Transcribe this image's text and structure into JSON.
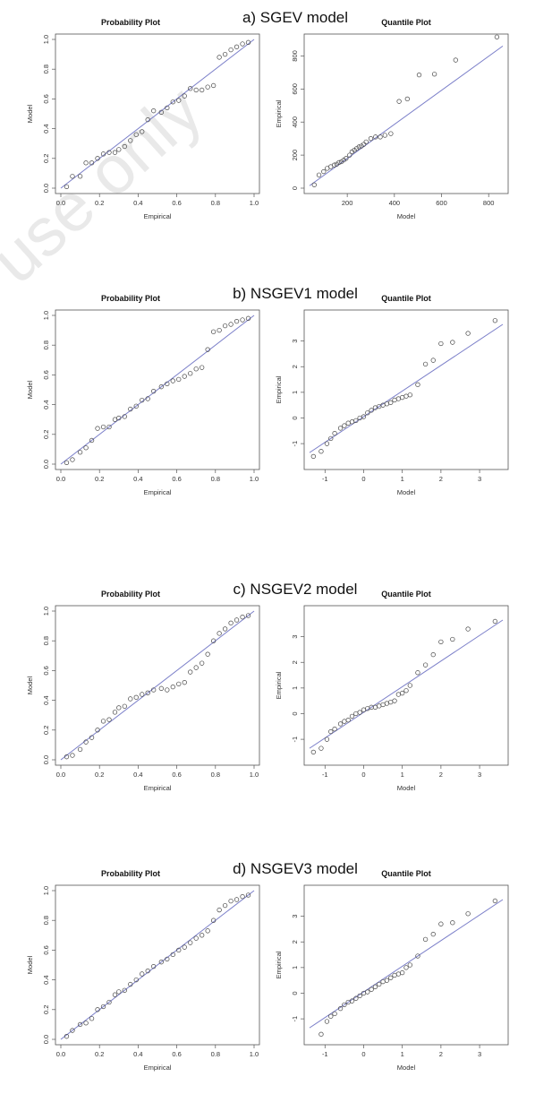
{
  "watermark": "use only",
  "colors": {
    "reference_line": "#7b7fc9",
    "points": "#444444",
    "frame": "#555555"
  },
  "chart_data": [
    {
      "section_title": "a) SGEV model",
      "type": "scatter",
      "title": "Probability Plot",
      "xlabel": "Empirical",
      "ylabel": "Model",
      "xlim": [
        0,
        1
      ],
      "ylim": [
        0,
        1
      ],
      "xticks": [
        "0.0",
        "0.2",
        "0.4",
        "0.6",
        "0.8",
        "1.0"
      ],
      "yticks": [
        "0.0",
        "0.2",
        "0.4",
        "0.6",
        "0.8",
        "1.0"
      ],
      "reference_line": [
        [
          0,
          0
        ],
        [
          1,
          1
        ]
      ],
      "x": [
        0.03,
        0.06,
        0.1,
        0.13,
        0.16,
        0.19,
        0.22,
        0.25,
        0.28,
        0.3,
        0.33,
        0.36,
        0.39,
        0.42,
        0.45,
        0.48,
        0.52,
        0.55,
        0.58,
        0.61,
        0.64,
        0.67,
        0.7,
        0.73,
        0.76,
        0.79,
        0.82,
        0.85,
        0.88,
        0.91,
        0.94,
        0.97
      ],
      "y": [
        0.01,
        0.08,
        0.08,
        0.17,
        0.17,
        0.2,
        0.23,
        0.24,
        0.24,
        0.26,
        0.28,
        0.32,
        0.36,
        0.38,
        0.46,
        0.52,
        0.51,
        0.54,
        0.58,
        0.59,
        0.62,
        0.67,
        0.66,
        0.66,
        0.68,
        0.69,
        0.88,
        0.9,
        0.93,
        0.95,
        0.97,
        0.98
      ]
    },
    {
      "section_title": "",
      "type": "scatter",
      "title": "Quantile Plot",
      "xlabel": "Model",
      "ylabel": "Empirical",
      "xlim": [
        40,
        860
      ],
      "ylim": [
        0,
        900
      ],
      "xticks": [
        "200",
        "400",
        "600",
        "800"
      ],
      "yticks": [
        "0",
        "200",
        "400",
        "600",
        "800"
      ],
      "reference_line": [
        [
          40,
          15
        ],
        [
          860,
          860
        ]
      ],
      "x": [
        60,
        80,
        100,
        115,
        130,
        145,
        155,
        165,
        175,
        185,
        195,
        210,
        220,
        230,
        240,
        250,
        260,
        270,
        280,
        300,
        320,
        340,
        360,
        385,
        420,
        455,
        505,
        570,
        660,
        835
      ],
      "y": [
        20,
        80,
        100,
        120,
        130,
        140,
        145,
        155,
        160,
        170,
        180,
        200,
        220,
        230,
        240,
        250,
        255,
        265,
        280,
        300,
        310,
        310,
        320,
        330,
        525,
        540,
        685,
        690,
        775,
        915
      ]
    },
    {
      "section_title": "b) NSGEV1 model",
      "type": "scatter",
      "title": "Probability Plot",
      "xlabel": "Empirical",
      "ylabel": "Model",
      "xlim": [
        0,
        1
      ],
      "ylim": [
        0,
        1
      ],
      "xticks": [
        "0.0",
        "0.2",
        "0.4",
        "0.6",
        "0.8",
        "1.0"
      ],
      "yticks": [
        "0.0",
        "0.2",
        "0.4",
        "0.6",
        "0.8",
        "1.0"
      ],
      "reference_line": [
        [
          0,
          0
        ],
        [
          1,
          1
        ]
      ],
      "x": [
        0.03,
        0.06,
        0.1,
        0.13,
        0.16,
        0.19,
        0.22,
        0.25,
        0.28,
        0.3,
        0.33,
        0.36,
        0.39,
        0.42,
        0.45,
        0.48,
        0.52,
        0.55,
        0.58,
        0.61,
        0.64,
        0.67,
        0.7,
        0.73,
        0.76,
        0.79,
        0.82,
        0.85,
        0.88,
        0.91,
        0.94,
        0.97
      ],
      "y": [
        0.01,
        0.03,
        0.08,
        0.11,
        0.16,
        0.24,
        0.25,
        0.25,
        0.3,
        0.31,
        0.32,
        0.37,
        0.39,
        0.43,
        0.44,
        0.49,
        0.52,
        0.54,
        0.56,
        0.57,
        0.59,
        0.61,
        0.64,
        0.65,
        0.77,
        0.89,
        0.9,
        0.93,
        0.94,
        0.96,
        0.97,
        0.98
      ]
    },
    {
      "section_title": "",
      "type": "scatter",
      "title": "Quantile Plot",
      "xlabel": "Model",
      "ylabel": "Empirical",
      "xlim": [
        -1.4,
        3.6
      ],
      "ylim": [
        -1.8,
        4.0
      ],
      "xticks": [
        "-1",
        "0",
        "1",
        "2",
        "3"
      ],
      "yticks": [
        "-1",
        "0",
        "1",
        "2",
        "3"
      ],
      "reference_line": [
        [
          -1.4,
          -1.35
        ],
        [
          3.6,
          3.65
        ]
      ],
      "x": [
        -1.3,
        -1.1,
        -0.95,
        -0.85,
        -0.75,
        -0.6,
        -0.5,
        -0.4,
        -0.3,
        -0.2,
        -0.1,
        0.0,
        0.1,
        0.2,
        0.3,
        0.4,
        0.5,
        0.6,
        0.7,
        0.8,
        0.9,
        1.0,
        1.1,
        1.2,
        1.4,
        1.6,
        1.8,
        2.0,
        2.3,
        2.7,
        3.4
      ],
      "y": [
        -1.5,
        -1.3,
        -1.0,
        -0.8,
        -0.6,
        -0.4,
        -0.3,
        -0.2,
        -0.15,
        -0.1,
        0.0,
        0.05,
        0.2,
        0.3,
        0.4,
        0.45,
        0.5,
        0.55,
        0.6,
        0.7,
        0.75,
        0.8,
        0.85,
        0.9,
        1.3,
        2.1,
        2.25,
        2.9,
        2.95,
        3.3,
        3.8
      ]
    },
    {
      "section_title": "c) NSGEV2 model",
      "type": "scatter",
      "title": "Probability Plot",
      "xlabel": "Empirical",
      "ylabel": "Model",
      "xlim": [
        0,
        1
      ],
      "ylim": [
        0,
        1
      ],
      "xticks": [
        "0.0",
        "0.2",
        "0.4",
        "0.6",
        "0.8",
        "1.0"
      ],
      "yticks": [
        "0.0",
        "0.2",
        "0.4",
        "0.6",
        "0.8",
        "1.0"
      ],
      "reference_line": [
        [
          0,
          0
        ],
        [
          1,
          1
        ]
      ],
      "x": [
        0.03,
        0.06,
        0.1,
        0.13,
        0.16,
        0.19,
        0.22,
        0.25,
        0.28,
        0.3,
        0.33,
        0.36,
        0.39,
        0.42,
        0.45,
        0.48,
        0.52,
        0.55,
        0.58,
        0.61,
        0.64,
        0.67,
        0.7,
        0.73,
        0.76,
        0.79,
        0.82,
        0.85,
        0.88,
        0.91,
        0.94,
        0.97
      ],
      "y": [
        0.02,
        0.03,
        0.07,
        0.12,
        0.15,
        0.2,
        0.26,
        0.27,
        0.32,
        0.35,
        0.36,
        0.41,
        0.42,
        0.44,
        0.45,
        0.47,
        0.48,
        0.47,
        0.49,
        0.51,
        0.52,
        0.59,
        0.62,
        0.65,
        0.71,
        0.8,
        0.85,
        0.88,
        0.92,
        0.94,
        0.96,
        0.97
      ]
    },
    {
      "section_title": "",
      "type": "scatter",
      "title": "Quantile Plot",
      "xlabel": "Model",
      "ylabel": "Empirical",
      "xlim": [
        -1.4,
        3.6
      ],
      "ylim": [
        -1.8,
        4.0
      ],
      "xticks": [
        "-1",
        "0",
        "1",
        "2",
        "3"
      ],
      "yticks": [
        "-1",
        "0",
        "1",
        "2",
        "3"
      ],
      "reference_line": [
        [
          -1.4,
          -1.35
        ],
        [
          3.6,
          3.65
        ]
      ],
      "x": [
        -1.3,
        -1.1,
        -0.95,
        -0.85,
        -0.75,
        -0.6,
        -0.5,
        -0.4,
        -0.3,
        -0.2,
        -0.1,
        0.0,
        0.1,
        0.2,
        0.3,
        0.4,
        0.5,
        0.6,
        0.7,
        0.8,
        0.9,
        1.0,
        1.1,
        1.2,
        1.4,
        1.6,
        1.8,
        2.0,
        2.3,
        2.7,
        3.4
      ],
      "y": [
        -1.5,
        -1.35,
        -1.0,
        -0.7,
        -0.6,
        -0.4,
        -0.3,
        -0.25,
        -0.1,
        0.0,
        0.05,
        0.15,
        0.2,
        0.25,
        0.25,
        0.3,
        0.35,
        0.4,
        0.45,
        0.5,
        0.75,
        0.8,
        0.9,
        1.1,
        1.6,
        1.9,
        2.3,
        2.8,
        2.9,
        3.3,
        3.6
      ]
    },
    {
      "section_title": "d) NSGEV3 model",
      "type": "scatter",
      "title": "Probability Plot",
      "xlabel": "Empirical",
      "ylabel": "Model",
      "xlim": [
        0,
        1
      ],
      "ylim": [
        0,
        1
      ],
      "xticks": [
        "0.0",
        "0.2",
        "0.4",
        "0.6",
        "0.8",
        "1.0"
      ],
      "yticks": [
        "0.0",
        "0.2",
        "0.4",
        "0.6",
        "0.8",
        "1.0"
      ],
      "reference_line": [
        [
          0,
          0
        ],
        [
          1,
          1
        ]
      ],
      "x": [
        0.03,
        0.06,
        0.1,
        0.13,
        0.16,
        0.19,
        0.22,
        0.25,
        0.28,
        0.3,
        0.33,
        0.36,
        0.39,
        0.42,
        0.45,
        0.48,
        0.52,
        0.55,
        0.58,
        0.61,
        0.64,
        0.67,
        0.7,
        0.73,
        0.76,
        0.79,
        0.82,
        0.85,
        0.88,
        0.91,
        0.94,
        0.97
      ],
      "y": [
        0.02,
        0.06,
        0.1,
        0.11,
        0.14,
        0.2,
        0.22,
        0.25,
        0.3,
        0.32,
        0.33,
        0.37,
        0.4,
        0.44,
        0.46,
        0.49,
        0.52,
        0.54,
        0.57,
        0.6,
        0.62,
        0.65,
        0.68,
        0.7,
        0.73,
        0.8,
        0.87,
        0.9,
        0.93,
        0.94,
        0.96,
        0.97
      ]
    },
    {
      "section_title": "",
      "type": "scatter",
      "title": "Quantile Plot",
      "xlabel": "Model",
      "ylabel": "Empirical",
      "xlim": [
        -1.4,
        3.6
      ],
      "ylim": [
        -1.8,
        4.0
      ],
      "xticks": [
        "-1",
        "0",
        "1",
        "2",
        "3"
      ],
      "yticks": [
        "-1",
        "0",
        "1",
        "2",
        "3"
      ],
      "reference_line": [
        [
          -1.4,
          -1.35
        ],
        [
          3.6,
          3.65
        ]
      ],
      "x": [
        -1.1,
        -0.95,
        -0.85,
        -0.75,
        -0.6,
        -0.5,
        -0.4,
        -0.3,
        -0.2,
        -0.1,
        0.0,
        0.1,
        0.2,
        0.3,
        0.4,
        0.5,
        0.6,
        0.7,
        0.8,
        0.9,
        1.0,
        1.1,
        1.2,
        1.4,
        1.6,
        1.8,
        2.0,
        2.3,
        2.7,
        3.4
      ],
      "y": [
        -1.6,
        -1.1,
        -0.9,
        -0.8,
        -0.6,
        -0.45,
        -0.35,
        -0.3,
        -0.2,
        -0.1,
        0.0,
        0.05,
        0.15,
        0.25,
        0.35,
        0.45,
        0.5,
        0.6,
        0.7,
        0.75,
        0.8,
        1.0,
        1.1,
        1.45,
        2.1,
        2.3,
        2.7,
        2.75,
        3.1,
        3.6
      ]
    }
  ]
}
